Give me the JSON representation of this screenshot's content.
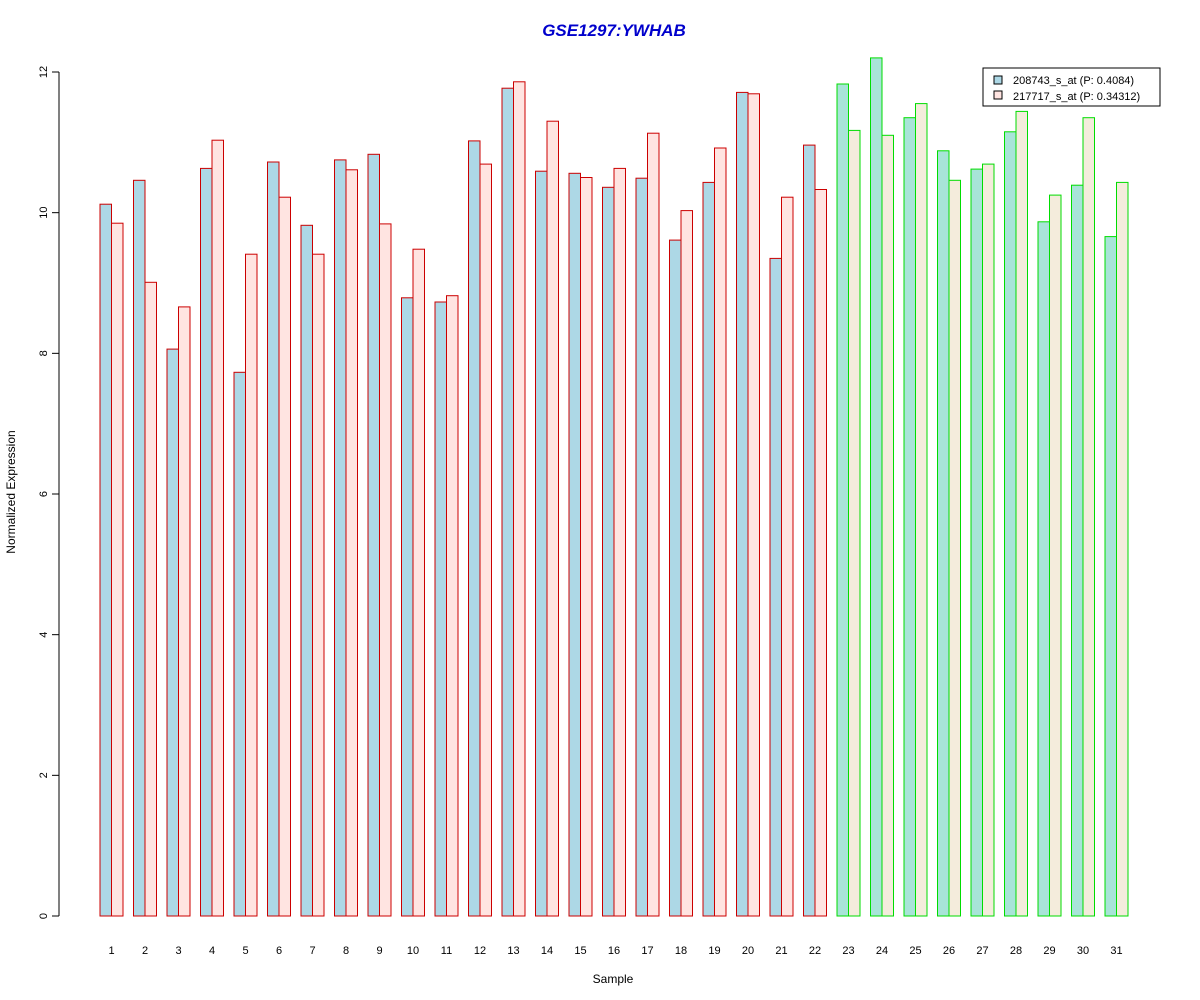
{
  "chart_data": {
    "type": "bar",
    "title": "GSE1297:YWHAB",
    "xlabel": "Sample",
    "ylabel": "Normalized Expression",
    "ylim": [
      0,
      12
    ],
    "yticks": [
      0,
      2,
      4,
      6,
      8,
      10,
      12
    ],
    "grid": false,
    "legend_position": "top-right",
    "categories": [
      "1",
      "2",
      "3",
      "4",
      "5",
      "6",
      "7",
      "8",
      "9",
      "10",
      "11",
      "12",
      "13",
      "14",
      "15",
      "16",
      "17",
      "18",
      "19",
      "20",
      "21",
      "22",
      "23",
      "24",
      "25",
      "26",
      "27",
      "28",
      "29",
      "30",
      "31"
    ],
    "series": [
      {
        "name": "208743_s_at (P: 0.4084)",
        "values": [
          10.12,
          10.46,
          8.06,
          10.63,
          7.73,
          10.72,
          9.82,
          10.75,
          10.83,
          8.79,
          8.73,
          11.02,
          11.77,
          10.59,
          10.56,
          10.36,
          10.49,
          9.61,
          10.43,
          11.71,
          9.35,
          10.96,
          11.83,
          12.2,
          11.35,
          10.88,
          10.62,
          11.15,
          9.87,
          10.39,
          9.66
        ],
        "fill_color": "#add8e6"
      },
      {
        "name": "217717_s_at (P: 0.34312)",
        "values": [
          9.85,
          9.01,
          8.66,
          11.03,
          9.41,
          10.22,
          9.41,
          10.61,
          9.84,
          9.48,
          8.82,
          10.69,
          11.86,
          11.3,
          10.5,
          10.63,
          11.13,
          10.03,
          10.92,
          11.69,
          10.22,
          10.33,
          11.17,
          11.1,
          11.55,
          10.46,
          10.69,
          11.44,
          10.25,
          11.35,
          10.43
        ],
        "fill_color": "#ffe4e1"
      }
    ],
    "group_colors": {
      "group1_border": "#cc0000",
      "group2_border": "#00dd00",
      "group2_fill_series1": "#a8e4d8",
      "group2_fill_series2": "#f4ecdc"
    },
    "group_boundary_after_category": 22
  }
}
